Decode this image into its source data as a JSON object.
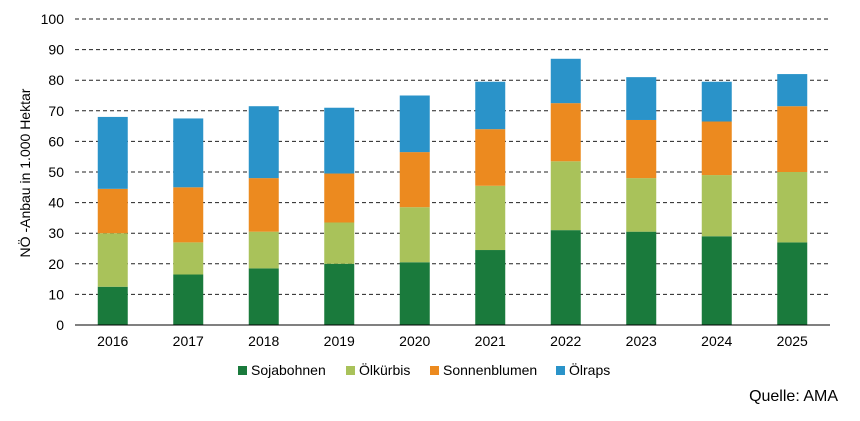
{
  "chart_data": {
    "type": "bar",
    "stacked": true,
    "title": "",
    "xlabel": "",
    "ylabel": "NÖ -Anbau in 1.000 Hektar",
    "ylim": [
      0,
      100
    ],
    "yticks": [
      0,
      10,
      20,
      30,
      40,
      50,
      60,
      70,
      80,
      90,
      100
    ],
    "grid": "horizontal-dashed",
    "legend_position": "bottom",
    "categories": [
      "2016",
      "2017",
      "2018",
      "2019",
      "2020",
      "2021",
      "2022",
      "2023",
      "2024",
      "2025"
    ],
    "series": [
      {
        "name": "Sojabohnen",
        "color": "#1a7a3c",
        "values": [
          12.5,
          16.5,
          18.5,
          20,
          20.5,
          24.5,
          31,
          30.5,
          29,
          27
        ]
      },
      {
        "name": "Ölkürbis",
        "color": "#a9c25a",
        "values": [
          17.5,
          10.5,
          12,
          13.5,
          18,
          21,
          22.5,
          17.5,
          20,
          23
        ]
      },
      {
        "name": "Sonnenblumen",
        "color": "#ec8a1f",
        "values": [
          14.5,
          18,
          17.5,
          16,
          18,
          18.5,
          19,
          19,
          17.5,
          21.5
        ]
      },
      {
        "name": "Ölraps",
        "color": "#2a93c9",
        "values": [
          23.5,
          22.5,
          23.5,
          21.5,
          18.5,
          15.5,
          14.5,
          14,
          13,
          10.5
        ]
      }
    ]
  },
  "source": "Quelle: AMA"
}
